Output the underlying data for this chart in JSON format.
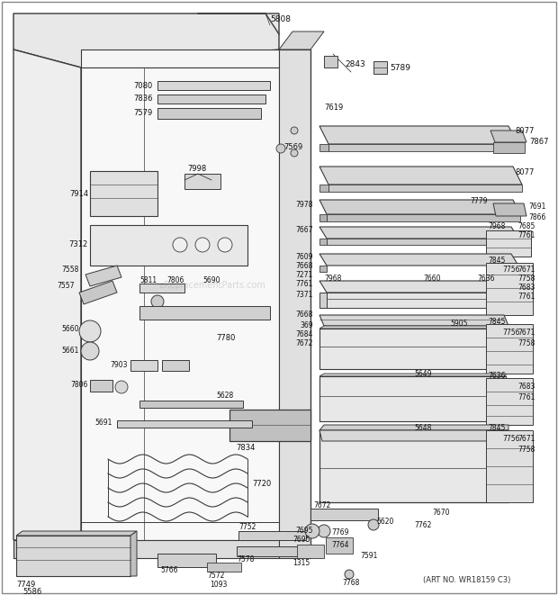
{
  "art_no": "(ART NO. WR18159 C3)",
  "bg_color": "#ffffff",
  "lc": "#3a3a3a",
  "fig_width": 6.2,
  "fig_height": 6.61,
  "dpi": 100
}
